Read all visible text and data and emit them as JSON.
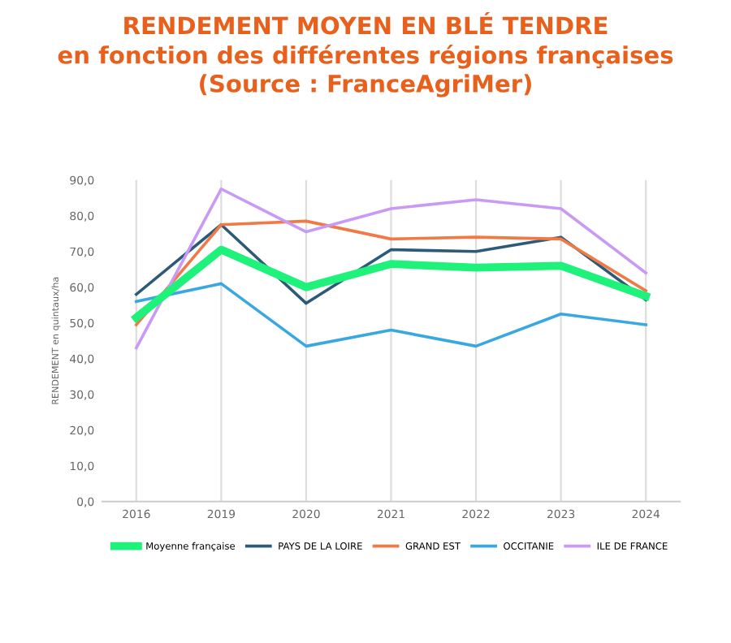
{
  "chart_data": {
    "type": "line",
    "title": "RENDEMENT MOYEN EN BLÉ TENDRE\nen fonction des différentes régions françaises\n(Source : FranceAgriMer)",
    "ylabel": "RENDEMENT en quintaux/ha",
    "categories": [
      "2016",
      "2019",
      "2020",
      "2021",
      "2022",
      "2023",
      "2024"
    ],
    "series": [
      {
        "name": "Moyenne française",
        "color": "#1ff27a",
        "values": [
          51.5,
          70.5,
          60,
          66.5,
          65.5,
          66,
          57.5
        ]
      },
      {
        "name": "PAYS DE LA LOIRE",
        "color": "#2d5a78",
        "values": [
          58,
          77.5,
          55.5,
          70.5,
          70,
          74,
          56.5
        ]
      },
      {
        "name": "GRAND EST",
        "color": "#f07a45",
        "values": [
          49.5,
          77.5,
          78.5,
          73.5,
          74,
          73.5,
          59
        ]
      },
      {
        "name": "OCCITANIE",
        "color": "#3aa8e0",
        "values": [
          56,
          61,
          43.5,
          48,
          43.5,
          52.5,
          49.5
        ]
      },
      {
        "name": "ILE DE FRANCE",
        "color": "#c89af5",
        "values": [
          43,
          87.5,
          75.5,
          82,
          84.5,
          82,
          64
        ]
      }
    ],
    "ylim": [
      0,
      90
    ],
    "yticks": [
      {
        "value": 0,
        "label": "0,0"
      },
      {
        "value": 10,
        "label": "10,0"
      },
      {
        "value": 20,
        "label": "20,0"
      },
      {
        "value": 30,
        "label": "30,0"
      },
      {
        "value": 40,
        "label": "40,0"
      },
      {
        "value": 50,
        "label": "50,0"
      },
      {
        "value": 60,
        "label": "60,0"
      },
      {
        "value": 70,
        "label": "70,0"
      },
      {
        "value": 80,
        "label": "80,0"
      },
      {
        "value": 90,
        "label": "90,0"
      }
    ],
    "grid": "x",
    "legend": "bottom",
    "marker": "none",
    "line_style": "solid"
  }
}
